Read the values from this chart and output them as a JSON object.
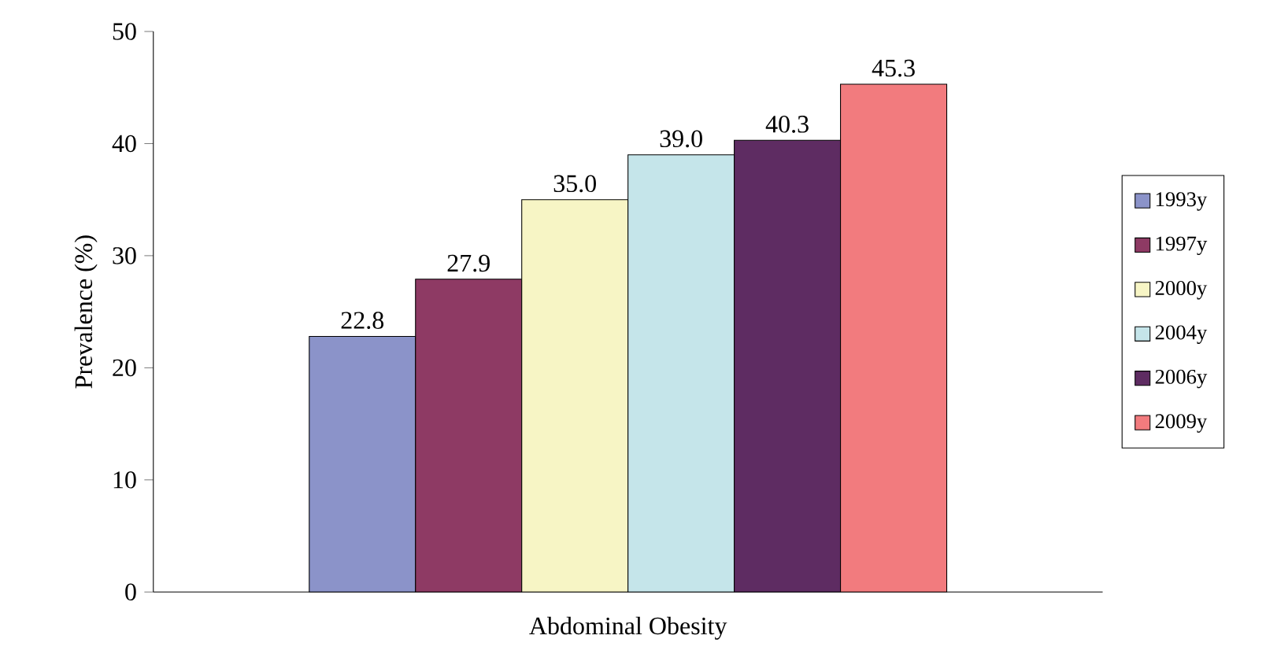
{
  "chart_data": {
    "type": "bar",
    "categories": [
      "Abdominal Obesity"
    ],
    "ylabel": "Prevalence (%)",
    "ylim": [
      0,
      50
    ],
    "yticks": [
      0,
      10,
      20,
      30,
      40,
      50
    ],
    "legend": "right",
    "grid": false,
    "series": [
      {
        "name": "1993y",
        "color": "#8b93c9",
        "values": [
          22.8
        ],
        "value_labels": [
          "22.8"
        ]
      },
      {
        "name": "1997y",
        "color": "#8e3a64",
        "values": [
          27.9
        ],
        "value_labels": [
          "27.9"
        ]
      },
      {
        "name": "2000y",
        "color": "#f7f5c5",
        "values": [
          35.0
        ],
        "value_labels": [
          "35.0"
        ]
      },
      {
        "name": "2004y",
        "color": "#c5e5ea",
        "values": [
          39.0
        ],
        "value_labels": [
          "39.0"
        ]
      },
      {
        "name": "2006y",
        "color": "#5e2c62",
        "values": [
          40.3
        ],
        "value_labels": [
          "40.3"
        ]
      },
      {
        "name": "2009y",
        "color": "#f27b7e",
        "values": [
          45.3
        ],
        "value_labels": [
          "45.3"
        ]
      }
    ]
  }
}
